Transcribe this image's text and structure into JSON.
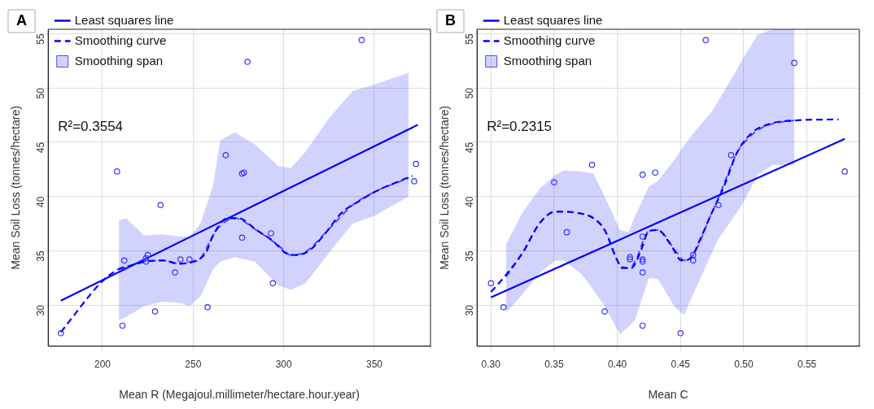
{
  "chart_data": [
    {
      "type": "scatter",
      "title": "A",
      "xlabel": "Mean R (Megajoul.millimeter/hectare.hour.year)",
      "ylabel": "Mean Soil Loss (tonnes/hectare)",
      "xlim": [
        170,
        381
      ],
      "ylim": [
        26.2,
        55.4
      ],
      "xticks": [
        200,
        250,
        300,
        350
      ],
      "yticks": [
        30,
        35,
        40,
        45,
        50,
        55
      ],
      "grid": true,
      "legend": "top left",
      "annotations": [
        "R²=0.3554"
      ],
      "series": [
        {
          "type": "scatter",
          "marker": "circle",
          "color": "#3333ff",
          "x": [
            177,
            208,
            211,
            212,
            224,
            224,
            225,
            229,
            232,
            240,
            243,
            248,
            258,
            268,
            277,
            278,
            277,
            280,
            293,
            294,
            343,
            373,
            372
          ],
          "values": [
            27.4,
            42.3,
            28.1,
            34.1,
            34.0,
            34.3,
            34.6,
            29.4,
            39.2,
            33.0,
            34.2,
            34.2,
            29.8,
            43.8,
            42.1,
            42.2,
            36.2,
            52.4,
            36.6,
            32.0,
            54.4,
            43.0,
            41.4
          ]
        },
        {
          "type": "line",
          "name": "Least squares line",
          "color": "#0000ff",
          "line_style": "solid",
          "x": [
            177,
            374
          ],
          "values": [
            30.4,
            46.6
          ]
        },
        {
          "type": "line",
          "name": "Smoothing curve",
          "color": "#0000ff",
          "line_style": "dashed",
          "x": [
            177,
            200,
            209,
            215,
            224,
            234,
            242,
            250,
            257,
            261,
            269,
            275,
            285,
            294,
            301,
            307,
            314,
            322,
            332,
            342,
            350,
            371
          ],
          "values": [
            27.5,
            32.2,
            33.3,
            33.6,
            34.0,
            34.1,
            33.8,
            34.0,
            34.8,
            36.4,
            38.0,
            38.0,
            36.9,
            35.9,
            34.8,
            34.6,
            35.0,
            36.4,
            38.5,
            39.6,
            40.4,
            41.9
          ]
        },
        {
          "type": "line",
          "name": "Smoothing span",
          "color": "#4d4dff",
          "line_style": "dashed",
          "x": [
            209,
            213,
            223,
            233,
            243,
            248,
            254,
            261,
            265,
            273,
            284,
            297,
            304,
            312,
            325,
            338,
            350,
            369
          ],
          "values": [
            33.3,
            33.5,
            34.0,
            34.1,
            33.8,
            33.9,
            34.3,
            36.4,
            37.3,
            38.0,
            37.0,
            35.5,
            34.6,
            34.9,
            37.0,
            39.2,
            40.4,
            41.7
          ],
          "upper": [
            37.8,
            38.0,
            36.4,
            36.5,
            36.3,
            36.3,
            37.5,
            41.0,
            45.2,
            45.9,
            44.8,
            42.8,
            42.6,
            44.1,
            47.2,
            49.7,
            50.3,
            51.4
          ],
          "lower": [
            28.6,
            28.9,
            29.9,
            30.3,
            30.2,
            29.9,
            30.8,
            33.3,
            34.0,
            34.4,
            34.0,
            31.8,
            31.4,
            32.0,
            34.8,
            37.5,
            38.2,
            40.0
          ]
        }
      ]
    },
    {
      "type": "scatter",
      "title": "B",
      "xlabel": "Mean C",
      "ylabel": "Mean Soil Loss (tonnes/hectare)",
      "xlim": [
        0.289,
        0.5915
      ],
      "ylim": [
        26.2,
        55.4
      ],
      "xticks": [
        {
          "value": 0.3,
          "label": "0.30"
        },
        0.35,
        {
          "value": 0.4,
          "label": "0.40"
        },
        0.45,
        {
          "value": 0.5,
          "label": "0.50"
        },
        0.55
      ],
      "yticks": [
        30,
        35,
        40,
        45,
        50,
        55
      ],
      "grid": true,
      "legend": "top left",
      "annotations": [
        "R²=0.2315"
      ],
      "series": [
        {
          "type": "scatter",
          "marker": "circle",
          "color": "#3333ff",
          "x": [
            0.3,
            0.31,
            0.35,
            0.36,
            0.38,
            0.39,
            0.41,
            0.41,
            0.42,
            0.42,
            0.42,
            0.42,
            0.42,
            0.42,
            0.43,
            0.45,
            0.46,
            0.46,
            0.47,
            0.48,
            0.49,
            0.54,
            0.58
          ],
          "values": [
            32.0,
            29.8,
            41.3,
            36.7,
            42.9,
            29.4,
            34.4,
            34.2,
            42.0,
            36.3,
            34.2,
            34.0,
            33.0,
            28.1,
            42.2,
            27.4,
            34.6,
            34.1,
            54.4,
            39.2,
            43.8,
            52.3,
            42.3
          ]
        },
        {
          "type": "line",
          "name": "Least squares line",
          "color": "#0000ff",
          "line_style": "solid",
          "x": [
            0.3,
            0.58
          ],
          "values": [
            30.7,
            45.3
          ]
        },
        {
          "type": "line",
          "name": "Smoothing curve",
          "color": "#0000ff",
          "line_style": "dashed",
          "x": [
            0.3,
            0.31,
            0.325,
            0.339,
            0.351,
            0.367,
            0.381,
            0.39,
            0.4,
            0.404,
            0.411,
            0.418,
            0.425,
            0.432,
            0.442,
            0.451,
            0.458,
            0.465,
            0.474,
            0.484,
            0.495,
            0.507,
            0.521,
            0.54,
            0.575
          ],
          "values": [
            31.2,
            32.5,
            34.8,
            37.6,
            38.6,
            38.5,
            38.0,
            36.9,
            34.1,
            33.4,
            33.4,
            34.8,
            36.8,
            36.9,
            35.6,
            34.1,
            34.3,
            35.9,
            38.3,
            40.8,
            44.1,
            45.9,
            46.7,
            47.0,
            47.1
          ]
        },
        {
          "type": "line",
          "name": "Smoothing span",
          "color": "#4d4dff",
          "line_style": "dashed",
          "x": [
            0.312,
            0.325,
            0.339,
            0.351,
            0.358,
            0.372,
            0.381,
            0.39,
            0.402,
            0.409,
            0.414,
            0.425,
            0.432,
            0.446,
            0.453,
            0.46,
            0.474,
            0.479,
            0.495,
            0.5,
            0.511,
            0.523,
            0.54
          ],
          "values": [
            32.6,
            34.8,
            37.6,
            38.6,
            38.6,
            38.4,
            38.0,
            36.9,
            33.7,
            33.4,
            34.0,
            36.8,
            36.9,
            35.0,
            34.1,
            34.6,
            38.3,
            39.6,
            44.1,
            44.9,
            46.1,
            46.7,
            47.0
          ],
          "upper": [
            35.6,
            38.5,
            40.8,
            42.0,
            42.4,
            42.3,
            42.1,
            40.0,
            36.9,
            36.7,
            38.2,
            40.9,
            41.4,
            43.5,
            44.7,
            45.8,
            47.7,
            48.6,
            51.8,
            52.8,
            54.9,
            55.4,
            55.4
          ],
          "lower": [
            29.3,
            31.0,
            33.0,
            34.1,
            34.1,
            32.8,
            31.4,
            29.9,
            27.3,
            28.0,
            28.6,
            32.5,
            32.4,
            29.7,
            29.1,
            31.0,
            34.6,
            35.9,
            38.6,
            39.5,
            42.0,
            42.9,
            42.9
          ]
        }
      ]
    }
  ]
}
